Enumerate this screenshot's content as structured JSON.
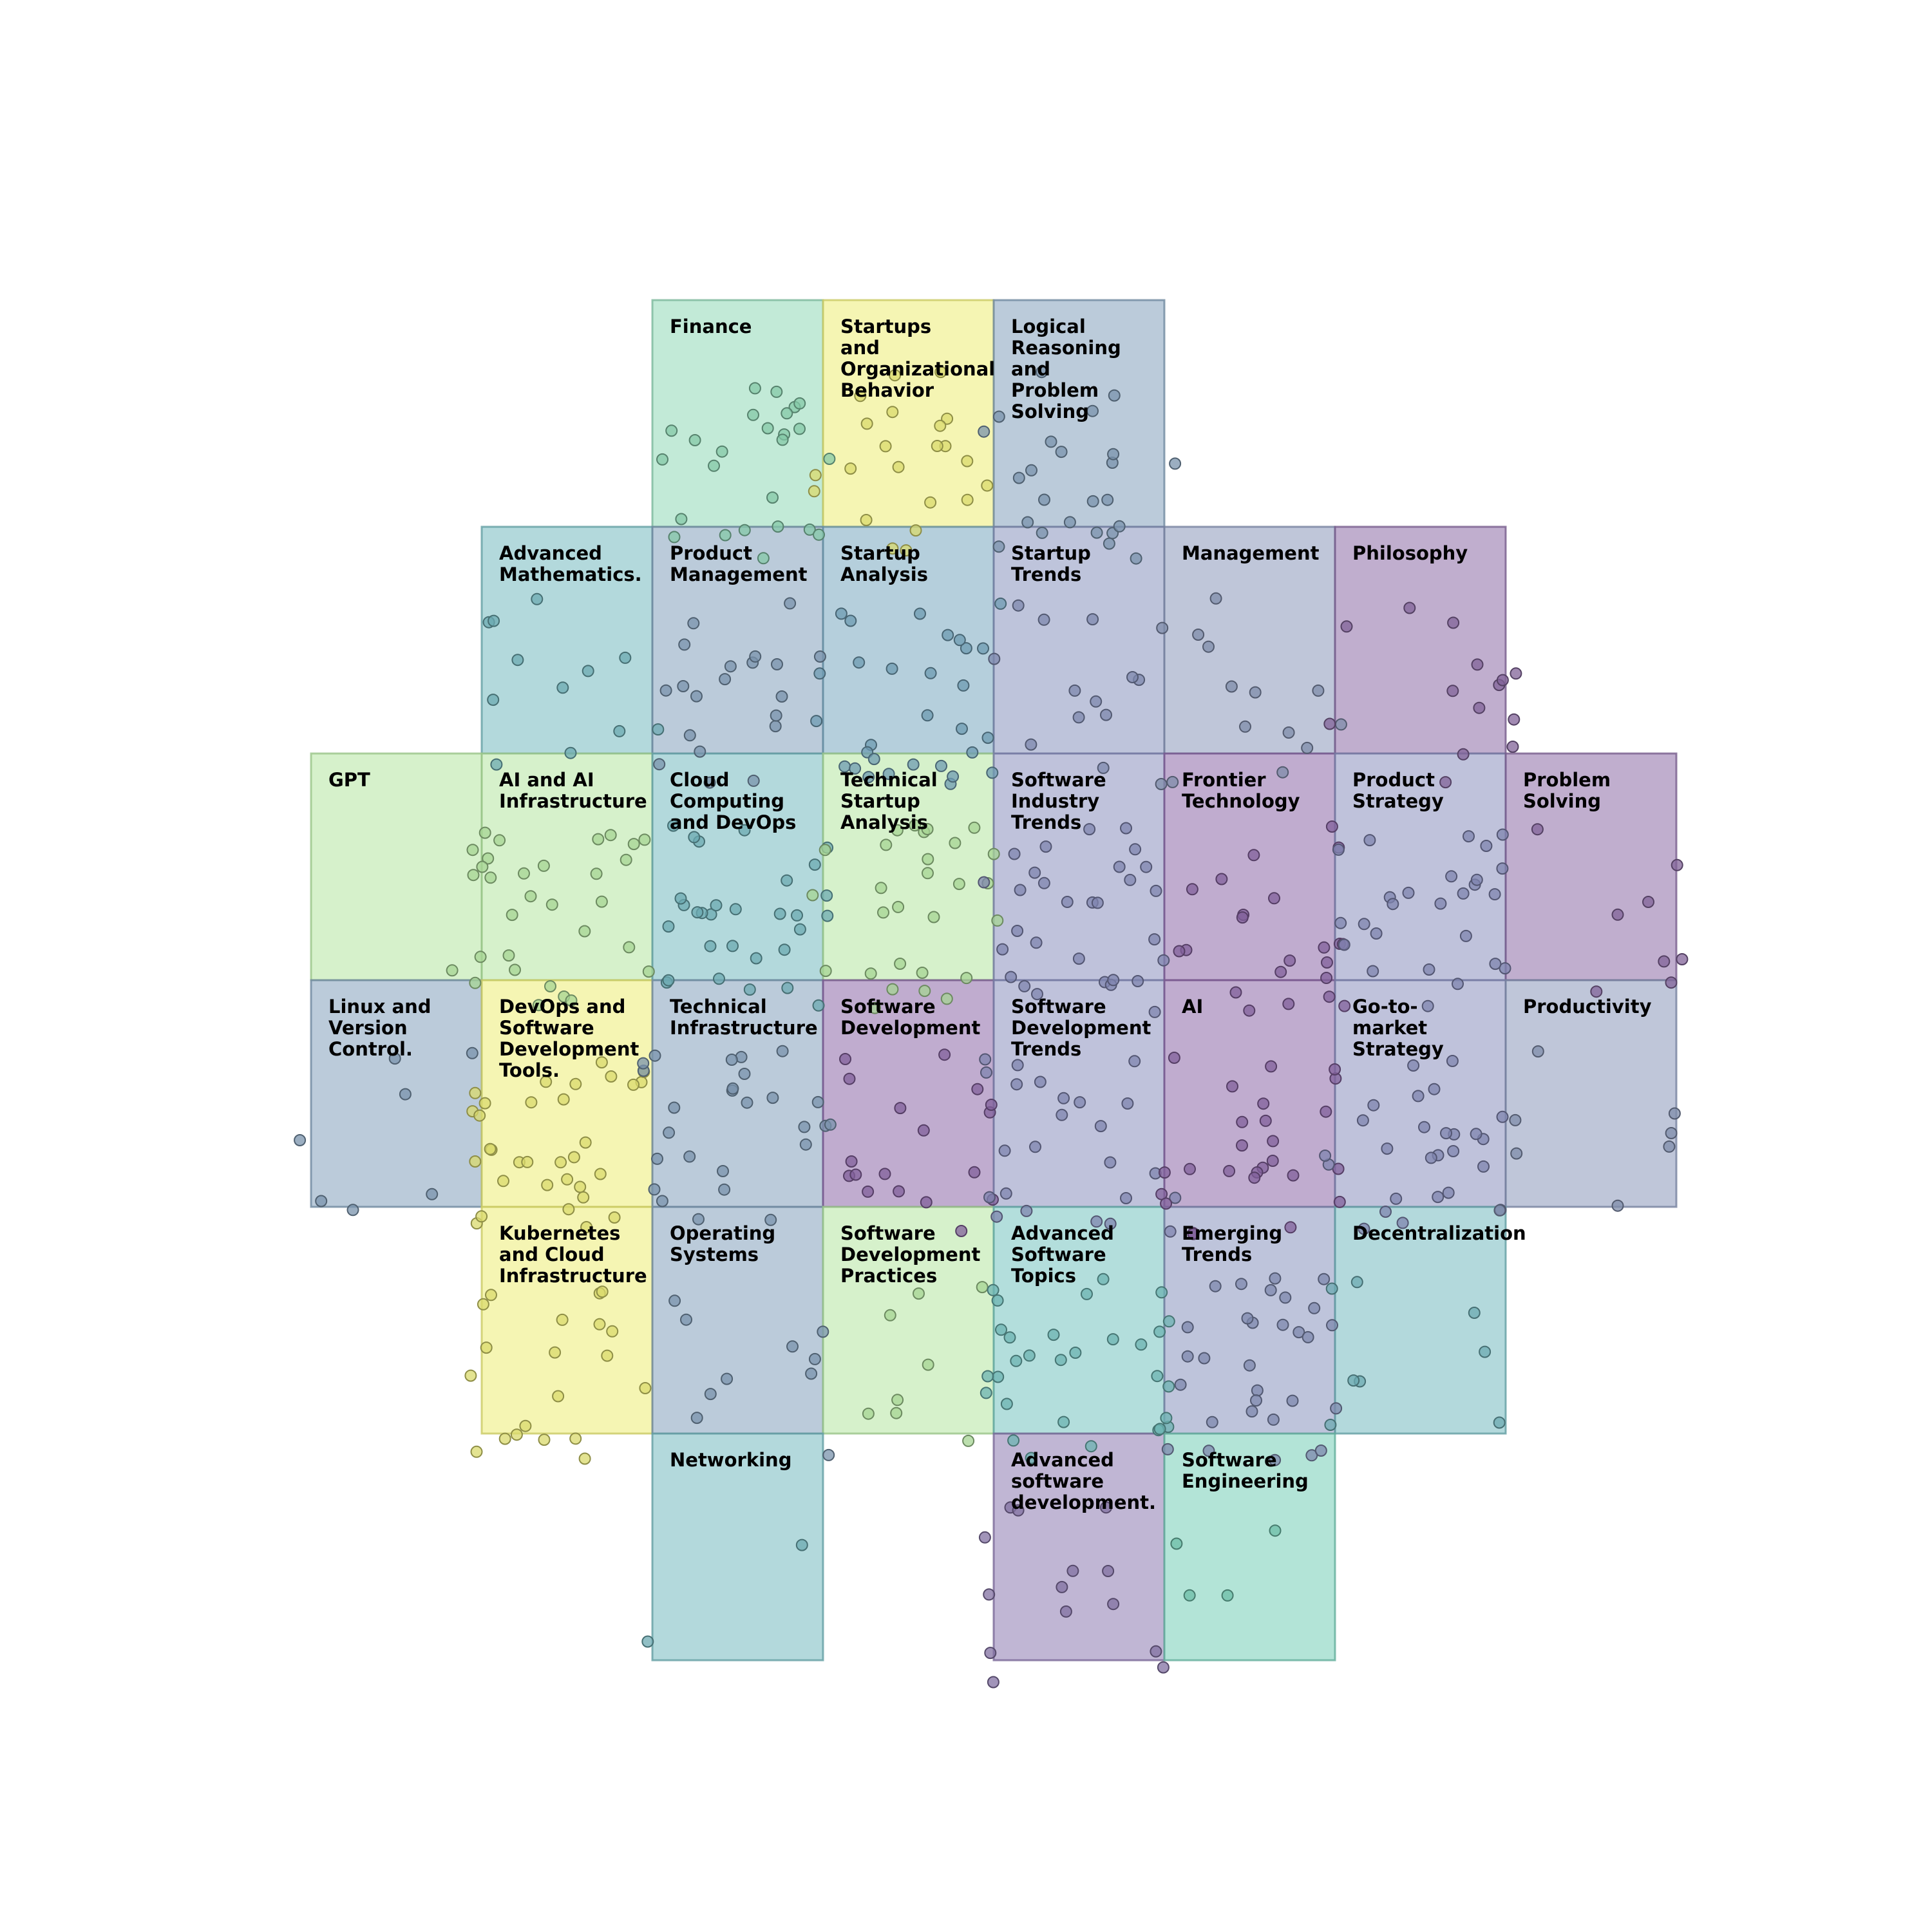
{
  "chart_data": {
    "type": "scatter",
    "subtype": "topic-tile-map",
    "grid": false,
    "axes_visible": false,
    "cells": [
      {
        "label": "Finance",
        "col": 2,
        "row": 0,
        "color": "#8fd9b6",
        "n": 25
      },
      {
        "label": "Startups\nand\nOrganizational\nBehavior",
        "col": 3,
        "row": 0,
        "color": "#eded75",
        "n": 22
      },
      {
        "label": "Logical\nReasoning\nand\nProblem\nSolving",
        "col": 4,
        "row": 0,
        "color": "#83a0bb",
        "n": 24
      },
      {
        "label": "Advanced\nMathematics.",
        "col": 1,
        "row": 1,
        "color": "#75b9c0",
        "n": 12
      },
      {
        "label": "Product\nManagement",
        "col": 2,
        "row": 1,
        "color": "#83a0bb",
        "n": 20
      },
      {
        "label": "Startup\nAnalysis",
        "col": 3,
        "row": 1,
        "color": "#78a8c0",
        "n": 30
      },
      {
        "label": "Startup\nTrends",
        "col": 4,
        "row": 1,
        "color": "#8994bd",
        "n": 12
      },
      {
        "label": "Management",
        "col": 5,
        "row": 1,
        "color": "#8a98b9",
        "n": 14
      },
      {
        "label": "Philosophy",
        "col": 6,
        "row": 1,
        "color": "#8c6ca5",
        "n": 14
      },
      {
        "label": "GPT",
        "col": 0,
        "row": 2,
        "color": "#b4e6a0",
        "n": 1
      },
      {
        "label": "AI and AI\nInfrastructure",
        "col": 1,
        "row": 2,
        "color": "#b4e6a0",
        "n": 30
      },
      {
        "label": "Cloud\nComputing\nand DevOps",
        "col": 2,
        "row": 2,
        "color": "#75b9c0",
        "n": 30
      },
      {
        "label": "Technical\nStartup\nAnalysis",
        "col": 3,
        "row": 2,
        "color": "#b4e6a0",
        "n": 28
      },
      {
        "label": "Software\nIndustry\nTrends",
        "col": 4,
        "row": 2,
        "color": "#8a8fbe",
        "n": 30
      },
      {
        "label": "Frontier\nTechnology",
        "col": 5,
        "row": 2,
        "color": "#8d68a8",
        "n": 22
      },
      {
        "label": "Product\nStrategy",
        "col": 6,
        "row": 2,
        "color": "#8a8fbe",
        "n": 26
      },
      {
        "label": "Problem\nSolving",
        "col": 7,
        "row": 2,
        "color": "#8c6ca5",
        "n": 8
      },
      {
        "label": "Linux and\nVersion\nControl.",
        "col": 0,
        "row": 3,
        "color": "#83a0bb",
        "n": 7
      },
      {
        "label": "DevOps and\nSoftware\nDevelopment\nTools.",
        "col": 1,
        "row": 3,
        "color": "#eded75",
        "n": 32
      },
      {
        "label": "Technical\nInfrastructure",
        "col": 2,
        "row": 3,
        "color": "#83a0bb",
        "n": 26
      },
      {
        "label": "Software\nDevelopment",
        "col": 3,
        "row": 3,
        "color": "#8d68a8",
        "n": 18
      },
      {
        "label": "Software\nDevelopment\nTrends",
        "col": 4,
        "row": 3,
        "color": "#8a8fbe",
        "n": 24
      },
      {
        "label": "AI",
        "col": 5,
        "row": 3,
        "color": "#8d68a8",
        "n": 26
      },
      {
        "label": "Go-to-\nmarket\nStrategy",
        "col": 6,
        "row": 3,
        "color": "#8a8fbe",
        "n": 26
      },
      {
        "label": "Productivity",
        "col": 7,
        "row": 3,
        "color": "#8a98b9",
        "n": 8
      },
      {
        "label": "Kubernetes\nand Cloud\nInfrastructure",
        "col": 1,
        "row": 4,
        "color": "#eded75",
        "n": 20
      },
      {
        "label": "Operating\nSystems",
        "col": 2,
        "row": 4,
        "color": "#83a0bb",
        "n": 10
      },
      {
        "label": "Software\nDevelopment\nPractices",
        "col": 3,
        "row": 4,
        "color": "#b4e6a0",
        "n": 8
      },
      {
        "label": "Advanced\nSoftware\nTopics",
        "col": 4,
        "row": 4,
        "color": "#75c3c0",
        "n": 30
      },
      {
        "label": "Emerging\nTrends",
        "col": 5,
        "row": 4,
        "color": "#8994bd",
        "n": 30
      },
      {
        "label": "Decentralization",
        "col": 6,
        "row": 4,
        "color": "#75b9c0",
        "n": 8
      },
      {
        "label": "Networking",
        "col": 2,
        "row": 5,
        "color": "#75b9c0",
        "n": 2
      },
      {
        "label": "Advanced\nsoftware\ndevelopment.",
        "col": 4,
        "row": 5,
        "color": "#8d7ab0",
        "n": 14
      },
      {
        "label": "Software\nEngineering",
        "col": 5,
        "row": 5,
        "color": "#75cdb6",
        "n": 4
      }
    ]
  }
}
